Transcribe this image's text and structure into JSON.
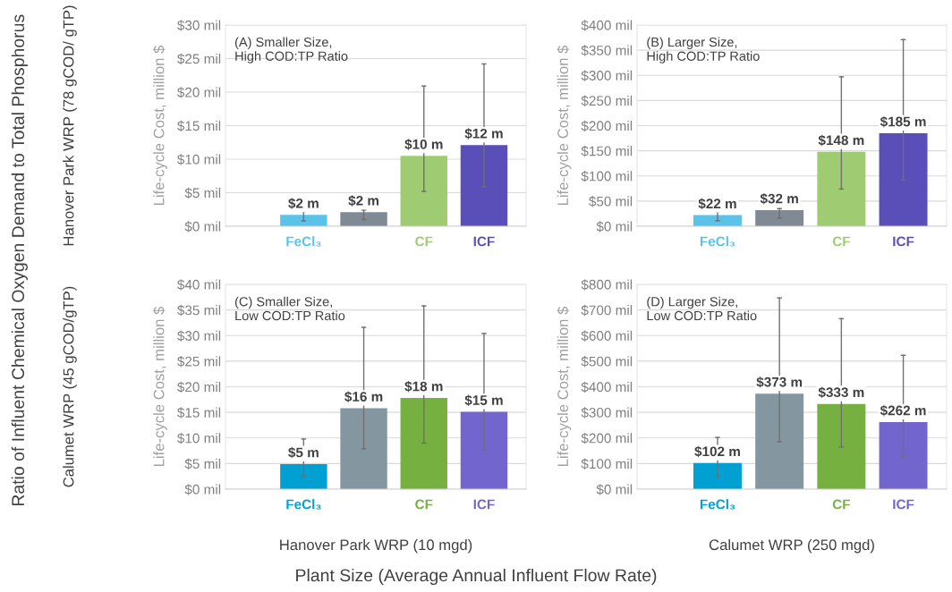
{
  "chart_data": [
    {
      "type": "bar",
      "title": "(A) Smaller Size,\nHigh COD:TP Ratio",
      "ylabel": "Life-cycle Cost, million $",
      "annotations": [
        "Hanover Park WRP (78 gCOD/ gTP)"
      ],
      "categories": [
        "FeCl₃",
        null,
        "CF",
        "ICF"
      ],
      "values": [
        1.7,
        2.1,
        10.5,
        12.1
      ],
      "colors": [
        "#5bc3ea",
        "#7f8a94",
        "#9fcc73",
        "#5a4fb8"
      ],
      "errors": [
        [
          0.8,
          2.2
        ],
        [
          1.0,
          2.4
        ],
        [
          5.2,
          20.9
        ],
        [
          5.9,
          24.2
        ]
      ],
      "value_labels": [
        "$2 m",
        "$2 m",
        "$10 m",
        "$12 m"
      ],
      "ylim": [
        0,
        30
      ],
      "yticks": [
        {
          "value": 0,
          "label": "$0 mil"
        },
        {
          "value": 5,
          "label": "$5 mil"
        },
        {
          "value": 10,
          "label": "$10 mil"
        },
        {
          "value": 15,
          "label": "$15 mil"
        },
        {
          "value": 20,
          "label": "$20 mil"
        },
        {
          "value": 25,
          "label": "$25 mil"
        },
        {
          "value": 30,
          "label": "$30 mil"
        }
      ],
      "grid": "y"
    },
    {
      "type": "bar",
      "title": "(B) Larger Size,\nHigh COD:TP Ratio",
      "ylabel": "Life-cycle Cost, million $",
      "categories": [
        "FeCl₃",
        null,
        "CF",
        "ICF"
      ],
      "values": [
        22,
        32,
        148,
        185
      ],
      "colors": [
        "#5bc3ea",
        "#7f8a94",
        "#9fcc73",
        "#5a4fb8"
      ],
      "errors": [
        [
          11,
          28
        ],
        [
          16,
          35
        ],
        [
          74,
          297
        ],
        [
          92,
          371
        ]
      ],
      "value_labels": [
        "$22 m",
        "$32 m",
        "$148 m",
        "$185 m"
      ],
      "ylim": [
        0,
        400
      ],
      "yticks": [
        {
          "value": 0,
          "label": "$0 mil"
        },
        {
          "value": 50,
          "label": "$50 mil"
        },
        {
          "value": 100,
          "label": "$100 mil"
        },
        {
          "value": 150,
          "label": "$150 mil"
        },
        {
          "value": 200,
          "label": "$200 mil"
        },
        {
          "value": 250,
          "label": "$250 mil"
        },
        {
          "value": 300,
          "label": "$300 mil"
        },
        {
          "value": 350,
          "label": "$350 mil"
        },
        {
          "value": 400,
          "label": "$400 mil"
        }
      ],
      "grid": "y"
    },
    {
      "type": "bar",
      "title": "(C) Smaller Size,\nLow COD:TP Ratio",
      "ylabel": "Life-cycle Cost, million $",
      "xlabel": "Hanover Park WRP (10 mgd)",
      "annotations": [
        "Calumet WRP (45 gCOD/gTP)"
      ],
      "categories": [
        "FeCl₃",
        null,
        "CF",
        "ICF"
      ],
      "values": [
        4.9,
        15.8,
        17.8,
        15.1
      ],
      "colors": [
        "#00a0d2",
        "#8496a0",
        "#76b041",
        "#7265cd"
      ],
      "errors": [
        [
          2.5,
          9.8
        ],
        [
          7.9,
          31.6
        ],
        [
          9.0,
          35.8
        ],
        [
          7.6,
          30.4
        ]
      ],
      "value_labels": [
        "$5 m",
        "$16 m",
        "$18 m",
        "$15 m"
      ],
      "ylim": [
        0,
        40
      ],
      "yticks": [
        {
          "value": 0,
          "label": "$0 mil"
        },
        {
          "value": 5,
          "label": "$5 mil"
        },
        {
          "value": 10,
          "label": "$10 mil"
        },
        {
          "value": 15,
          "label": "$15 mil"
        },
        {
          "value": 20,
          "label": "$20 mil"
        },
        {
          "value": 25,
          "label": "$25 mil"
        },
        {
          "value": 30,
          "label": "$30 mil"
        },
        {
          "value": 35,
          "label": "$35 mil"
        },
        {
          "value": 40,
          "label": "$40 mil"
        }
      ],
      "grid": "y"
    },
    {
      "type": "bar",
      "title": "(D) Larger Size,\nLow COD:TP Ratio",
      "ylabel": "Life-cycle Cost, million $",
      "xlabel": "Calumet WRP (250 mgd)",
      "categories": [
        "FeCl₃",
        null,
        "CF",
        "ICF"
      ],
      "values": [
        102,
        373,
        333,
        262
      ],
      "colors": [
        "#00a0d2",
        "#8496a0",
        "#76b041",
        "#7265cd"
      ],
      "errors": [
        [
          49,
          202
        ],
        [
          185,
          747
        ],
        [
          165,
          666
        ],
        [
          129,
          523
        ]
      ],
      "value_labels": [
        "$102 m",
        "$373 m",
        "$333 m",
        "$262 m"
      ],
      "ylim": [
        0,
        800
      ],
      "yticks": [
        {
          "value": 0,
          "label": "$0 mil"
        },
        {
          "value": 100,
          "label": "$100 mil"
        },
        {
          "value": 200,
          "label": "$200 mil"
        },
        {
          "value": 300,
          "label": "$300 mil"
        },
        {
          "value": 400,
          "label": "$400 mil"
        },
        {
          "value": 500,
          "label": "$500 mil"
        },
        {
          "value": 600,
          "label": "$600 mil"
        },
        {
          "value": 700,
          "label": "$700 mil"
        },
        {
          "value": 800,
          "label": "$800 mil"
        }
      ],
      "grid": "y"
    },
    {
      "type": "other",
      "xlabel": "Plant Size (Average Annual Influent Flow Rate)",
      "ylabel": "Ratio of Influent Chemical Oxygen Demand to Total Phosphorus"
    }
  ]
}
